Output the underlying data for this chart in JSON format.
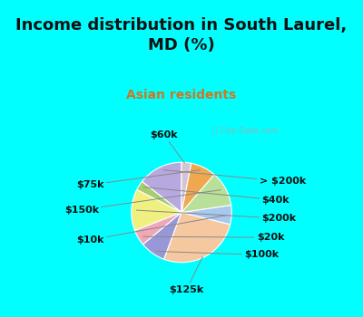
{
  "title": "Income distribution in South Laurel,\nMD (%)",
  "subtitle": "Asian residents",
  "title_color": "#111111",
  "subtitle_color": "#cc7722",
  "background_cyan": "#00ffff",
  "background_chart": "#dff0e8",
  "labels": [
    "> $200k",
    "$40k",
    "$200k",
    "$20k",
    "$100k",
    "$125k",
    "$10k",
    "$150k",
    "$75k",
    "$60k"
  ],
  "values": [
    14,
    3,
    13,
    5,
    8,
    26,
    6,
    11,
    8,
    3
  ],
  "colors": [
    "#b8a8e0",
    "#a8cc70",
    "#f0f080",
    "#f0a8b8",
    "#9898d8",
    "#f5c8a0",
    "#a8c8f0",
    "#b8e098",
    "#f0a850",
    "#d4c4d4"
  ],
  "startangle": 90,
  "watermark": "  City-Data.com"
}
